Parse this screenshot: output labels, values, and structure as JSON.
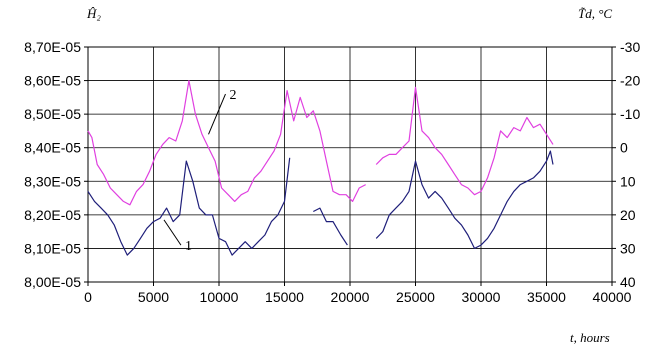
{
  "chart_data": {
    "type": "line",
    "xlabel": "t, hours",
    "ylabel_left": "Ĥ₂",
    "ylabel_right": "T̃d, °C",
    "xlim": [
      0,
      40000
    ],
    "x_ticks": [
      "0",
      "5000",
      "10000",
      "15000",
      "20000",
      "25000",
      "30000",
      "35000",
      "40000"
    ],
    "ylim_left": [
      8e-05,
      8.7e-05
    ],
    "y_left_ticks": [
      "8,00E-05",
      "8,10E-05",
      "8,20E-05",
      "8,30E-05",
      "8,40E-05",
      "8,50E-05",
      "8,60E-05",
      "8,70E-05"
    ],
    "ylim_right": [
      40,
      -30
    ],
    "y_right_ticks": [
      "40",
      "30",
      "20",
      "10",
      "0",
      "-10",
      "-20",
      "-30"
    ],
    "grid": true,
    "series": [
      {
        "name": "1",
        "color": "#1f1f7a",
        "axis": "left",
        "segments": [
          [
            [
              0,
              8.27e-05
            ],
            [
              500,
              8.24e-05
            ],
            [
              1000,
              8.22e-05
            ],
            [
              1500,
              8.2e-05
            ],
            [
              2000,
              8.17e-05
            ],
            [
              2500,
              8.12e-05
            ],
            [
              3000,
              8.08e-05
            ],
            [
              3500,
              8.1e-05
            ],
            [
              4000,
              8.13e-05
            ],
            [
              4500,
              8.16e-05
            ],
            [
              5000,
              8.18e-05
            ],
            [
              5500,
              8.19e-05
            ],
            [
              6000,
              8.22e-05
            ],
            [
              6500,
              8.18e-05
            ],
            [
              7000,
              8.2e-05
            ],
            [
              7500,
              8.36e-05
            ],
            [
              8000,
              8.3e-05
            ],
            [
              8500,
              8.22e-05
            ],
            [
              9000,
              8.2e-05
            ],
            [
              9500,
              8.2e-05
            ],
            [
              10000,
              8.13e-05
            ],
            [
              10500,
              8.12e-05
            ],
            [
              11000,
              8.08e-05
            ],
            [
              11500,
              8.1e-05
            ],
            [
              12000,
              8.12e-05
            ],
            [
              12500,
              8.1e-05
            ],
            [
              13000,
              8.12e-05
            ],
            [
              13500,
              8.14e-05
            ],
            [
              14000,
              8.18e-05
            ],
            [
              14500,
              8.2e-05
            ],
            [
              15000,
              8.24e-05
            ],
            [
              15400,
              8.37e-05
            ]
          ],
          [
            [
              17200,
              8.21e-05
            ],
            [
              17700,
              8.22e-05
            ],
            [
              18200,
              8.18e-05
            ],
            [
              18700,
              8.18e-05
            ],
            [
              19300,
              8.14e-05
            ],
            [
              19800,
              8.11e-05
            ]
          ],
          [
            [
              22000,
              8.13e-05
            ],
            [
              22500,
              8.15e-05
            ],
            [
              23000,
              8.2e-05
            ],
            [
              23500,
              8.22e-05
            ],
            [
              24000,
              8.24e-05
            ],
            [
              24500,
              8.27e-05
            ],
            [
              25000,
              8.36e-05
            ],
            [
              25500,
              8.29e-05
            ],
            [
              26000,
              8.25e-05
            ],
            [
              26500,
              8.27e-05
            ],
            [
              27000,
              8.25e-05
            ],
            [
              27500,
              8.22e-05
            ],
            [
              28000,
              8.19e-05
            ],
            [
              28500,
              8.17e-05
            ],
            [
              29000,
              8.14e-05
            ],
            [
              29500,
              8.1e-05
            ],
            [
              30000,
              8.11e-05
            ],
            [
              30500,
              8.13e-05
            ],
            [
              31000,
              8.16e-05
            ],
            [
              31500,
              8.2e-05
            ],
            [
              32000,
              8.24e-05
            ],
            [
              32500,
              8.27e-05
            ],
            [
              33000,
              8.29e-05
            ],
            [
              33500,
              8.3e-05
            ],
            [
              34000,
              8.31e-05
            ],
            [
              34500,
              8.33e-05
            ],
            [
              35000,
              8.36e-05
            ],
            [
              35300,
              8.39e-05
            ],
            [
              35500,
              8.35e-05
            ]
          ]
        ]
      },
      {
        "name": "2",
        "color": "#e040e0",
        "axis": "left",
        "segments": [
          [
            [
              0,
              8.45e-05
            ],
            [
              300,
              8.43e-05
            ],
            [
              700,
              8.35e-05
            ],
            [
              1200,
              8.32e-05
            ],
            [
              1700,
              8.28e-05
            ],
            [
              2200,
              8.26e-05
            ],
            [
              2700,
              8.24e-05
            ],
            [
              3200,
              8.23e-05
            ],
            [
              3700,
              8.27e-05
            ],
            [
              4200,
              8.29e-05
            ],
            [
              4700,
              8.33e-05
            ],
            [
              5200,
              8.38e-05
            ],
            [
              5700,
              8.41e-05
            ],
            [
              6200,
              8.43e-05
            ],
            [
              6700,
              8.42e-05
            ],
            [
              7200,
              8.48e-05
            ],
            [
              7700,
              8.6e-05
            ],
            [
              8200,
              8.5e-05
            ],
            [
              8700,
              8.44e-05
            ],
            [
              9200,
              8.4e-05
            ],
            [
              9700,
              8.36e-05
            ],
            [
              10200,
              8.28e-05
            ],
            [
              10700,
              8.26e-05
            ],
            [
              11200,
              8.24e-05
            ],
            [
              11700,
              8.26e-05
            ],
            [
              12200,
              8.27e-05
            ],
            [
              12700,
              8.31e-05
            ],
            [
              13200,
              8.33e-05
            ],
            [
              13700,
              8.36e-05
            ],
            [
              14200,
              8.39e-05
            ],
            [
              14700,
              8.44e-05
            ],
            [
              15200,
              8.57e-05
            ],
            [
              15700,
              8.48e-05
            ],
            [
              16200,
              8.55e-05
            ],
            [
              16700,
              8.49e-05
            ],
            [
              17200,
              8.51e-05
            ],
            [
              17700,
              8.45e-05
            ],
            [
              18200,
              8.36e-05
            ],
            [
              18700,
              8.27e-05
            ],
            [
              19200,
              8.26e-05
            ],
            [
              19700,
              8.26e-05
            ],
            [
              20200,
              8.24e-05
            ],
            [
              20700,
              8.28e-05
            ],
            [
              21200,
              8.29e-05
            ]
          ],
          [
            [
              22000,
              8.35e-05
            ],
            [
              22500,
              8.37e-05
            ],
            [
              23000,
              8.38e-05
            ],
            [
              23500,
              8.38e-05
            ],
            [
              24000,
              8.4e-05
            ],
            [
              24500,
              8.42e-05
            ],
            [
              25000,
              8.58e-05
            ],
            [
              25500,
              8.45e-05
            ],
            [
              26000,
              8.43e-05
            ],
            [
              26500,
              8.4e-05
            ],
            [
              27000,
              8.38e-05
            ],
            [
              27500,
              8.35e-05
            ],
            [
              28000,
              8.32e-05
            ],
            [
              28500,
              8.29e-05
            ],
            [
              29000,
              8.28e-05
            ],
            [
              29500,
              8.26e-05
            ],
            [
              30000,
              8.27e-05
            ],
            [
              30500,
              8.31e-05
            ],
            [
              31000,
              8.37e-05
            ],
            [
              31500,
              8.45e-05
            ],
            [
              32000,
              8.43e-05
            ],
            [
              32500,
              8.46e-05
            ],
            [
              33000,
              8.45e-05
            ],
            [
              33500,
              8.49e-05
            ],
            [
              34000,
              8.46e-05
            ],
            [
              34500,
              8.47e-05
            ],
            [
              35000,
              8.44e-05
            ],
            [
              35500,
              8.41e-05
            ]
          ]
        ]
      }
    ],
    "annotations": [
      {
        "text": "1",
        "x": 7400,
        "y": 8.095e-05,
        "target_x": 5800,
        "target_y": 8.185e-05
      },
      {
        "text": "2",
        "x": 10800,
        "y": 8.545e-05,
        "target_x": 9200,
        "target_y": 8.44e-05
      }
    ]
  }
}
